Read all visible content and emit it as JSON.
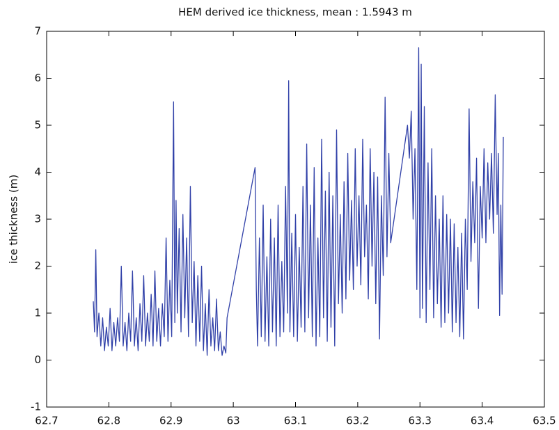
{
  "chart_data": {
    "type": "line",
    "title": "HEM derived ice thickness, mean : 1.5943 m",
    "y_label": "ice thickness (m)",
    "color": "#3040a8",
    "xlim": [
      62.7,
      63.5
    ],
    "xticks": [
      62.7,
      62.8,
      62.9,
      63,
      63.1,
      63.2,
      63.3,
      63.4,
      63.5
    ],
    "ylim": [
      -1,
      7
    ],
    "yticks": [
      -1,
      0,
      1,
      2,
      3,
      4,
      5,
      6,
      7
    ],
    "grid": false,
    "x": [
      62.775,
      62.777,
      62.779,
      62.781,
      62.784,
      62.787,
      62.79,
      62.793,
      62.796,
      62.799,
      62.802,
      62.805,
      62.808,
      62.811,
      62.814,
      62.817,
      62.82,
      62.823,
      62.826,
      62.829,
      62.832,
      62.835,
      62.838,
      62.841,
      62.844,
      62.847,
      62.85,
      62.853,
      62.856,
      62.859,
      62.862,
      62.865,
      62.868,
      62.871,
      62.874,
      62.877,
      62.88,
      62.883,
      62.886,
      62.889,
      62.892,
      62.895,
      62.898,
      62.901,
      62.904,
      62.906,
      62.908,
      62.91,
      62.913,
      62.916,
      62.919,
      62.922,
      62.925,
      62.928,
      62.931,
      62.934,
      62.937,
      62.94,
      62.943,
      62.946,
      62.949,
      62.952,
      62.955,
      62.958,
      62.961,
      62.964,
      62.967,
      62.97,
      62.973,
      62.976,
      62.979,
      62.982,
      62.985,
      62.988,
      62.99,
      63.035,
      63.037,
      63.039,
      63.042,
      63.045,
      63.048,
      63.051,
      63.054,
      63.057,
      63.06,
      63.063,
      63.066,
      63.069,
      63.072,
      63.075,
      63.078,
      63.081,
      63.084,
      63.087,
      63.089,
      63.091,
      63.094,
      63.097,
      63.1,
      63.103,
      63.106,
      63.109,
      63.112,
      63.115,
      63.118,
      63.121,
      63.124,
      63.127,
      63.13,
      63.133,
      63.136,
      63.139,
      63.142,
      63.145,
      63.148,
      63.151,
      63.154,
      63.157,
      63.16,
      63.163,
      63.166,
      63.169,
      63.172,
      63.175,
      63.178,
      63.181,
      63.184,
      63.187,
      63.19,
      63.193,
      63.196,
      63.199,
      63.202,
      63.205,
      63.208,
      63.211,
      63.214,
      63.217,
      63.22,
      63.223,
      63.226,
      63.229,
      63.232,
      63.235,
      63.238,
      63.241,
      63.244,
      63.247,
      63.25,
      63.253,
      63.28,
      63.283,
      63.286,
      63.289,
      63.292,
      63.295,
      63.298,
      63.3,
      63.302,
      63.304,
      63.307,
      63.31,
      63.313,
      63.316,
      63.319,
      63.322,
      63.325,
      63.328,
      63.331,
      63.334,
      63.337,
      63.34,
      63.343,
      63.346,
      63.349,
      63.352,
      63.355,
      63.358,
      63.361,
      63.364,
      63.367,
      63.37,
      63.373,
      63.376,
      63.379,
      63.382,
      63.385,
      63.388,
      63.391,
      63.394,
      63.397,
      63.4,
      63.403,
      63.406,
      63.409,
      63.412,
      63.415,
      63.418,
      63.421,
      63.424,
      63.426,
      63.428,
      63.43,
      63.432,
      63.434
    ],
    "values": [
      1.25,
      0.6,
      2.35,
      0.5,
      1.0,
      0.3,
      0.9,
      0.2,
      0.7,
      0.3,
      1.1,
      0.2,
      0.8,
      0.3,
      0.9,
      0.4,
      2.0,
      0.3,
      0.8,
      0.2,
      1.0,
      0.4,
      1.9,
      0.3,
      0.9,
      0.2,
      1.2,
      0.4,
      1.8,
      0.3,
      1.0,
      0.4,
      1.4,
      0.3,
      1.9,
      0.4,
      1.1,
      0.3,
      1.2,
      0.5,
      2.6,
      0.4,
      1.7,
      0.5,
      5.5,
      0.8,
      3.4,
      1.0,
      2.8,
      0.6,
      3.1,
      0.9,
      2.6,
      0.5,
      3.7,
      0.8,
      2.1,
      0.3,
      1.8,
      0.4,
      2.0,
      0.2,
      1.2,
      0.1,
      1.5,
      0.3,
      0.9,
      0.2,
      1.3,
      0.2,
      0.6,
      0.1,
      0.3,
      0.15,
      0.9,
      4.1,
      1.5,
      0.3,
      2.6,
      0.5,
      3.3,
      0.4,
      2.2,
      0.3,
      3.0,
      0.6,
      2.6,
      0.3,
      3.3,
      0.5,
      2.1,
      0.6,
      3.7,
      1.0,
      5.95,
      0.6,
      2.7,
      0.5,
      3.1,
      0.4,
      2.4,
      0.7,
      3.7,
      0.6,
      4.6,
      0.9,
      3.3,
      0.5,
      4.1,
      0.3,
      2.6,
      0.5,
      4.7,
      0.9,
      3.6,
      0.4,
      4.0,
      0.7,
      3.5,
      0.3,
      4.9,
      1.2,
      3.1,
      1.0,
      3.8,
      1.3,
      4.4,
      1.7,
      3.4,
      1.5,
      4.5,
      2.0,
      3.5,
      1.6,
      4.7,
      2.2,
      3.3,
      1.3,
      4.5,
      2.0,
      4.0,
      1.2,
      3.9,
      0.45,
      3.5,
      1.8,
      5.6,
      2.2,
      4.4,
      2.5,
      5.0,
      4.3,
      5.3,
      3.0,
      4.5,
      1.5,
      6.65,
      0.9,
      6.3,
      1.1,
      5.4,
      0.8,
      4.2,
      1.5,
      4.5,
      0.9,
      3.5,
      1.2,
      3.0,
      0.7,
      3.5,
      0.8,
      3.1,
      1.0,
      3.0,
      0.6,
      2.9,
      0.8,
      2.4,
      0.5,
      2.7,
      0.45,
      3.0,
      1.5,
      5.35,
      2.1,
      3.8,
      2.5,
      4.3,
      1.1,
      3.7,
      2.6,
      4.5,
      2.5,
      4.2,
      3.0,
      4.4,
      2.7,
      5.65,
      3.1,
      4.4,
      0.95,
      3.3,
      1.4,
      4.75
    ]
  }
}
